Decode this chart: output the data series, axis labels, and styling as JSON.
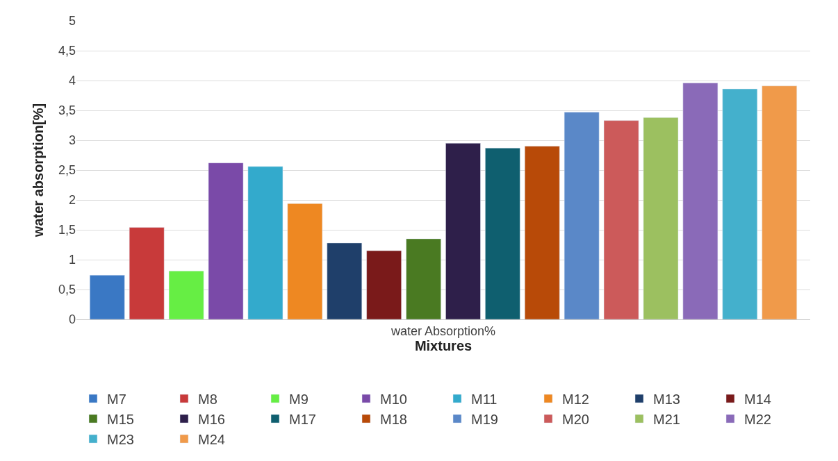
{
  "chart_data": {
    "type": "bar",
    "categories": [
      "water Absorption%"
    ],
    "xlabel": "Mixtures",
    "ylabel": "water absorption[%]",
    "ylim": [
      0,
      5
    ],
    "yticks": [
      0,
      {
        "value": 0.5,
        "label": "0,5"
      },
      1,
      {
        "value": 1.5,
        "label": "1,5"
      },
      2,
      {
        "value": 2.5,
        "label": "2,5"
      },
      3,
      {
        "value": 3.5,
        "label": "3,5"
      },
      4,
      {
        "value": 4.5,
        "label": "4,5"
      },
      5
    ],
    "grid": "y",
    "legend": "bottom",
    "series": [
      {
        "name": "M7",
        "color": "#3a78c4",
        "values": [
          0.74
        ]
      },
      {
        "name": "M8",
        "color": "#c83a3a",
        "values": [
          1.54
        ]
      },
      {
        "name": "M9",
        "color": "#66ee44",
        "values": [
          0.81
        ]
      },
      {
        "name": "M10",
        "color": "#7a4aa8",
        "values": [
          2.62
        ]
      },
      {
        "name": "M11",
        "color": "#33aacc",
        "values": [
          2.56
        ]
      },
      {
        "name": "M12",
        "color": "#ee8822",
        "values": [
          1.94
        ]
      },
      {
        "name": "M13",
        "color": "#1f3f6a",
        "values": [
          1.28
        ]
      },
      {
        "name": "M14",
        "color": "#7a1a1a",
        "values": [
          1.15
        ]
      },
      {
        "name": "M15",
        "color": "#4a7a22",
        "values": [
          1.35
        ]
      },
      {
        "name": "M16",
        "color": "#2e1f4a",
        "values": [
          2.95
        ]
      },
      {
        "name": "M17",
        "color": "#0f5f6f",
        "values": [
          2.87
        ]
      },
      {
        "name": "M18",
        "color": "#b84a08",
        "values": [
          2.9
        ]
      },
      {
        "name": "M19",
        "color": "#5a88c8",
        "values": [
          3.47
        ]
      },
      {
        "name": "M20",
        "color": "#cc5a5a",
        "values": [
          3.33
        ]
      },
      {
        "name": "M21",
        "color": "#9cc060",
        "values": [
          3.38
        ]
      },
      {
        "name": "M22",
        "color": "#8a6ab8",
        "values": [
          3.96
        ]
      },
      {
        "name": "M23",
        "color": "#44b0cc",
        "values": [
          3.86
        ]
      },
      {
        "name": "M24",
        "color": "#f09a4a",
        "values": [
          3.91
        ]
      }
    ]
  }
}
